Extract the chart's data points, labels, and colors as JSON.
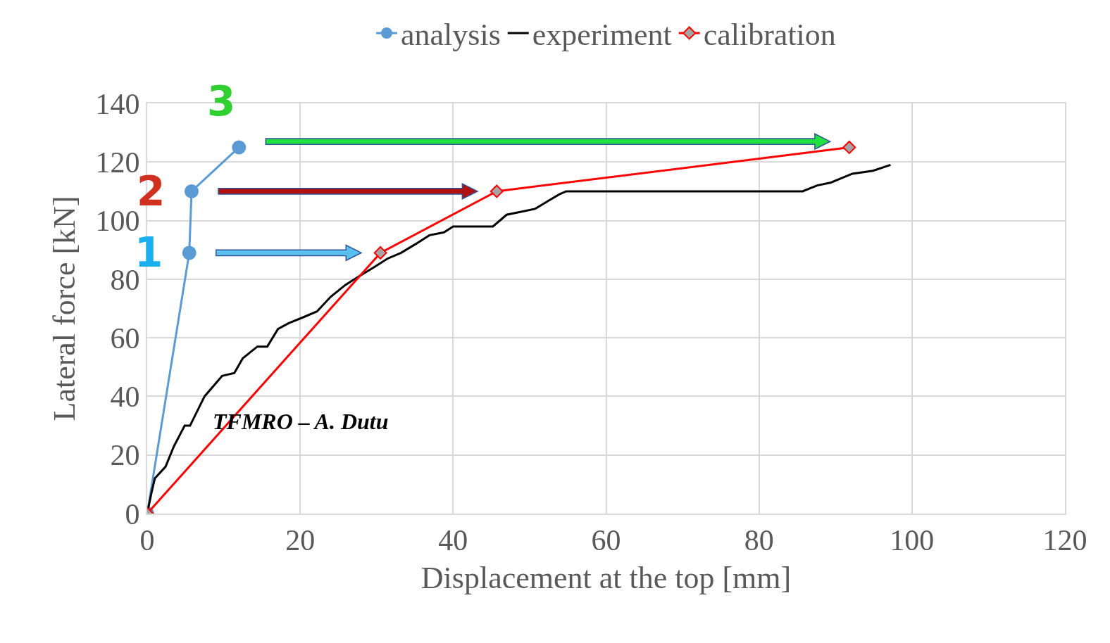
{
  "chart_data": {
    "type": "line",
    "xlabel": "Displacement at the top [mm]",
    "ylabel": "Lateral force [kN]",
    "xlim": [
      0,
      120
    ],
    "xticks": [
      0,
      20,
      40,
      60,
      80,
      100,
      120
    ],
    "ylim": [
      0,
      140
    ],
    "yticks": [
      0,
      20,
      40,
      60,
      80,
      100,
      120,
      140
    ],
    "grid": true,
    "legend": "top",
    "line_style": "solid",
    "series": [
      {
        "name": "analysis",
        "color": "#5b9bd5",
        "marker": "circle",
        "x": [
          0,
          5.5,
          5.8,
          12
        ],
        "values": [
          0,
          89,
          110,
          125
        ]
      },
      {
        "name": "experiment",
        "color": "#000000",
        "marker": "none",
        "x": [
          0,
          0.55,
          1,
          2.4,
          3.5,
          4.9,
          5.6,
          7.5,
          9.8,
          11.4,
          12.5,
          14.4,
          15.7,
          17.1,
          18.5,
          20.4,
          22.2,
          24,
          25.9,
          27.7,
          29.6,
          31.4,
          33.2,
          35.1,
          36.9,
          38.8,
          40,
          45.2,
          47,
          48.9,
          50.7,
          52.6,
          53.9,
          54.8,
          85.7,
          87.6,
          89.4,
          92.2,
          94.9,
          97.2
        ],
        "values": [
          0,
          7,
          12,
          16,
          23,
          30,
          30,
          40,
          47,
          48,
          53,
          57,
          57,
          63,
          65,
          67,
          69,
          74,
          78,
          81,
          84,
          87,
          89,
          92,
          95,
          96,
          98,
          98,
          102,
          103,
          104,
          107,
          109,
          110,
          110,
          112,
          113,
          116,
          117,
          119
        ]
      },
      {
        "name": "calibration",
        "color": "#ff0000",
        "marker": "diamond",
        "x": [
          0,
          30.5,
          45.7,
          91.8
        ],
        "values": [
          0,
          89,
          110,
          125
        ]
      }
    ],
    "annotations": [
      "1",
      "2",
      "3",
      "TFMRO – A. Dutu"
    ]
  }
}
